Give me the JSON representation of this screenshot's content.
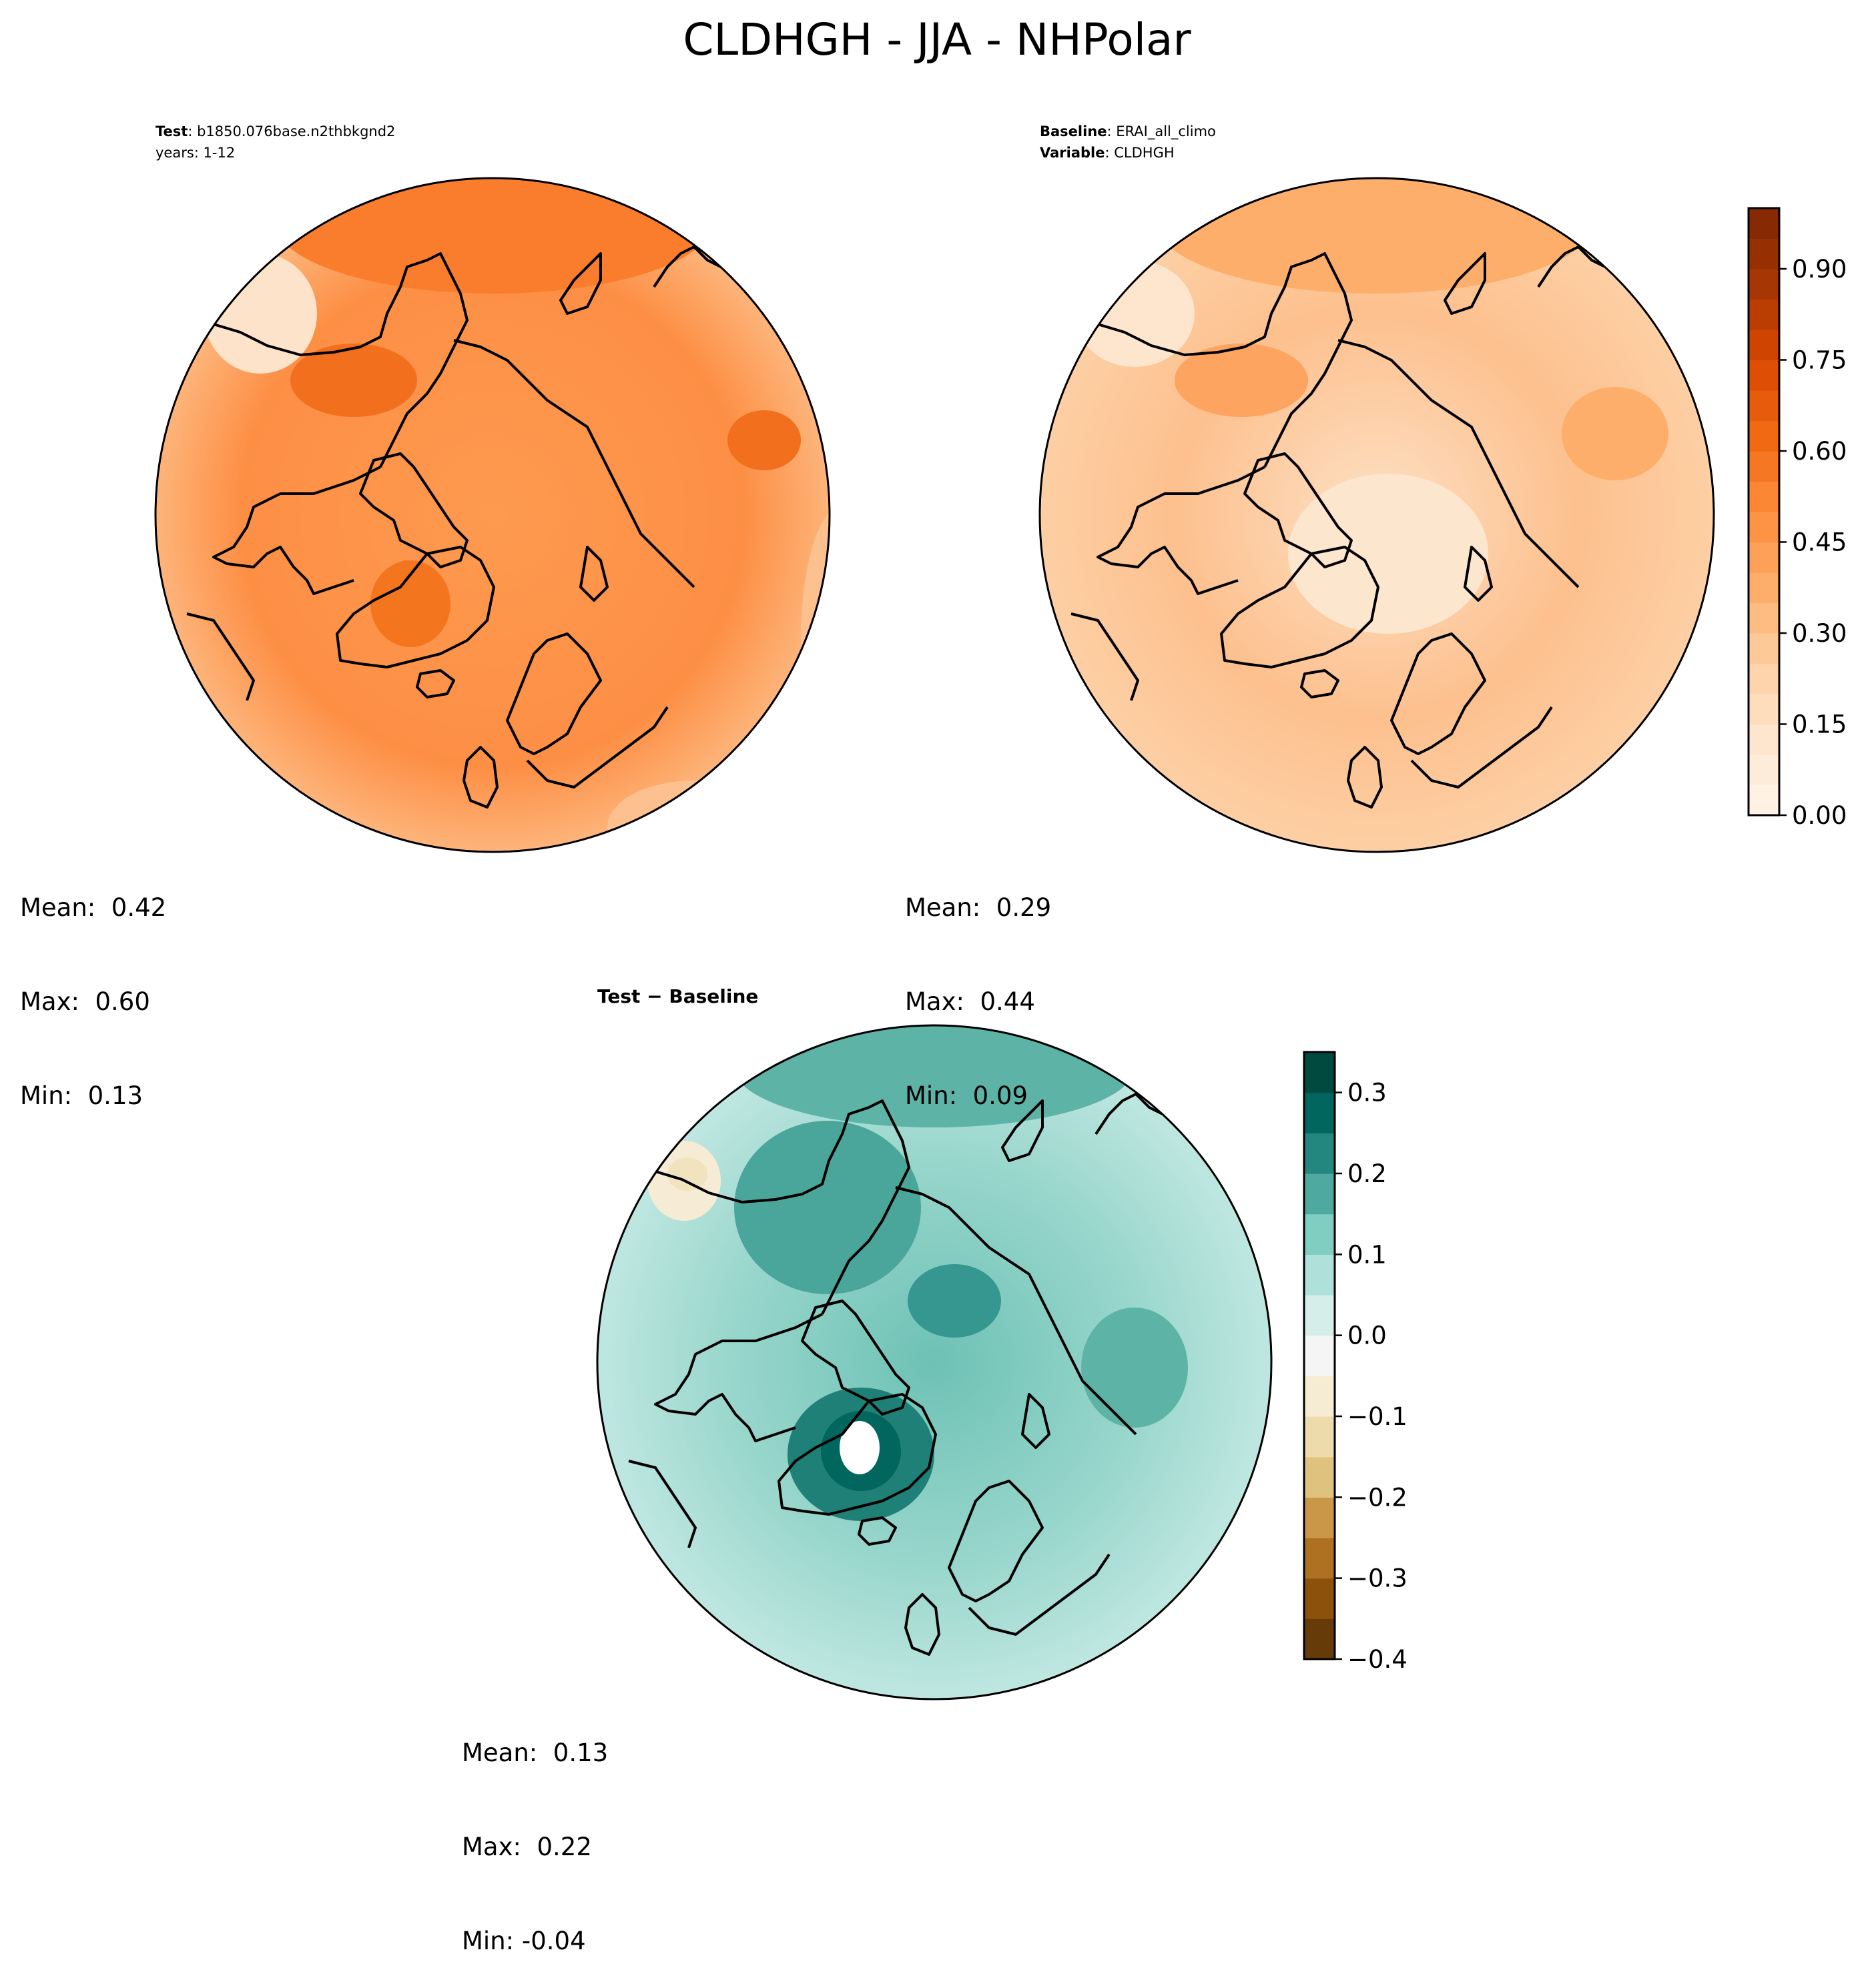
{
  "title": "CLDHGH - JJA - NHPolar",
  "chart_data": [
    {
      "type": "heatmap",
      "label_bold": "Test",
      "label_sep": ": ",
      "label_value": "b1850.076base.n2thbkgnd2",
      "label_line2": "years: 1-12",
      "stats": {
        "mean": "Mean:  0.42",
        "max": "Max:  0.60",
        "min": "Min:  0.13"
      },
      "mean_value": 0.42
    },
    {
      "type": "heatmap",
      "label_bold": "Baseline",
      "label_sep": ": ",
      "label_value": "ERAI_all_climo",
      "label_line2_bold": "Variable",
      "label_line2_value": "CLDHGH",
      "stats": {
        "mean": "Mean:  0.29",
        "max": "Max:  0.44",
        "min": "Min:  0.09"
      },
      "mean_value": 0.29,
      "colorbar": {
        "range": [
          0.0,
          1.0
        ],
        "levels": 20,
        "ticks": [
          "0.00",
          "0.15",
          "0.30",
          "0.45",
          "0.60",
          "0.75",
          "0.90"
        ],
        "tick_values": [
          0.0,
          0.15,
          0.3,
          0.45,
          0.6,
          0.75,
          0.9
        ]
      }
    },
    {
      "type": "heatmap",
      "label_bold": "Test − Baseline",
      "stats": {
        "mean": "Mean:  0.13",
        "max": "Max:  0.22",
        "min": "Min: -0.04"
      },
      "mean_value": 0.13,
      "colorbar": {
        "range": [
          -0.4,
          0.35
        ],
        "levels": 15,
        "ticks": [
          "0.3",
          "0.2",
          "0.1",
          "0.0",
          "−0.1",
          "−0.2",
          "−0.3",
          "−0.4"
        ],
        "tick_values": [
          0.3,
          0.2,
          0.1,
          0.0,
          -0.1,
          -0.2,
          -0.3,
          -0.4
        ]
      }
    }
  ],
  "colors": {
    "seq": [
      "#fff5eb",
      "#fee6ce",
      "#fdd0a2",
      "#fdae6b",
      "#fd8d3c",
      "#f16913",
      "#d94801",
      "#a63603",
      "#7f2704"
    ],
    "div": [
      "#543005",
      "#8c510a",
      "#bf812d",
      "#dfc27d",
      "#f6e8c3",
      "#f5f5f5",
      "#c7eae5",
      "#80cdc1",
      "#35978f",
      "#01665e",
      "#003c30"
    ]
  }
}
